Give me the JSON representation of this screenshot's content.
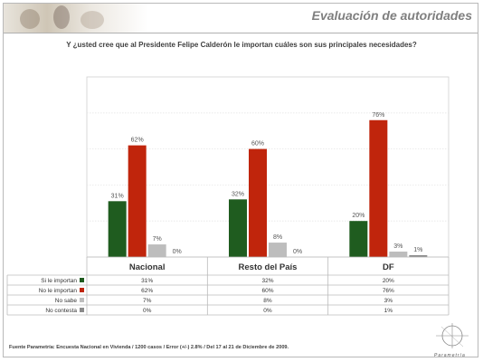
{
  "header": {
    "section_title": "Evaluación de autoridades",
    "question": "Y ¿usted cree que al Presidente Felipe Calderón le importan cuáles son sus principales necesidades?"
  },
  "footer": {
    "source": "Fuente Parametría: Encuesta Nacional en Vivienda / 1200 casos / Error (+/-) 2.8% / Del 17 al 21 de Diciembre de 2009.",
    "logo_text": "Parametría"
  },
  "colors": {
    "si": "#1f5c1f",
    "no": "#c0250c",
    "no_sabe": "#bdbdbd",
    "no_contesta": "#8a8a8a"
  },
  "chart_data": {
    "type": "bar",
    "categories": [
      "Nacional",
      "Resto del País",
      "DF"
    ],
    "series": [
      {
        "name": "Si le importan",
        "values": [
          31,
          32,
          20
        ]
      },
      {
        "name": "No le importan",
        "values": [
          62,
          60,
          76
        ]
      },
      {
        "name": "No sabe",
        "values": [
          7,
          8,
          3
        ]
      },
      {
        "name": "No contesta",
        "values": [
          0,
          0,
          1
        ]
      }
    ],
    "value_suffix": "%",
    "ylim": [
      0,
      100
    ],
    "grid": true,
    "legend": "table-left",
    "data_table": true
  }
}
